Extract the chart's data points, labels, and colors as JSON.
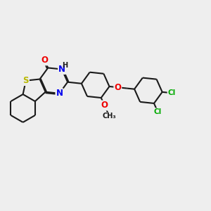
{
  "bg_color": "#eeeeee",
  "bond_color": "#1a1a1a",
  "bond_width": 1.5,
  "atom_colors": {
    "S": "#b8b800",
    "N": "#0000ee",
    "O": "#ee0000",
    "Cl": "#00aa00",
    "C": "#1a1a1a",
    "H": "#1a1a1a"
  },
  "font_size": 8.5,
  "figsize": [
    3.0,
    3.0
  ],
  "dpi": 100
}
